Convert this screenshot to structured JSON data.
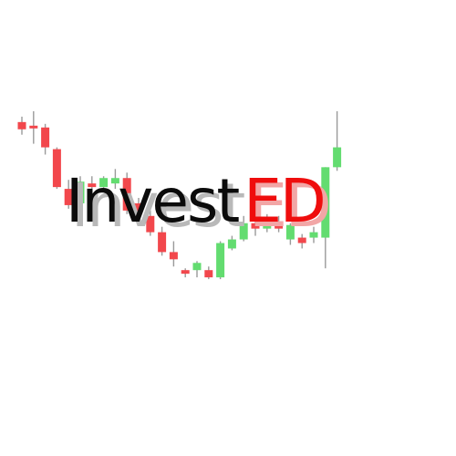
{
  "logo": {
    "word_black": "Invest",
    "word_red": "ED"
  },
  "colors": {
    "text_dark": "#0b0b0b",
    "text_red": "#ef0d0d",
    "candle_up": "#63dc70",
    "candle_down": "#f2474c",
    "wick": "#9a9a9a",
    "background": "#ffffff"
  },
  "candles": [
    {
      "dir": "down",
      "o": 0.92,
      "c": 0.88,
      "h": 0.95,
      "l": 0.85
    },
    {
      "dir": "down",
      "o": 0.9,
      "c": 0.89,
      "h": 0.98,
      "l": 0.8
    },
    {
      "dir": "down",
      "o": 0.89,
      "c": 0.78,
      "h": 0.91,
      "l": 0.74
    },
    {
      "dir": "down",
      "o": 0.77,
      "c": 0.56,
      "h": 0.78,
      "l": 0.55
    },
    {
      "dir": "down",
      "o": 0.55,
      "c": 0.46,
      "h": 0.6,
      "l": 0.44
    },
    {
      "dir": "up",
      "o": 0.47,
      "c": 0.59,
      "h": 0.62,
      "l": 0.45
    },
    {
      "dir": "down",
      "o": 0.58,
      "c": 0.56,
      "h": 0.62,
      "l": 0.5
    },
    {
      "dir": "up",
      "o": 0.56,
      "c": 0.61,
      "h": 0.62,
      "l": 0.53
    },
    {
      "dir": "up",
      "o": 0.58,
      "c": 0.61,
      "h": 0.66,
      "l": 0.55
    },
    {
      "dir": "down",
      "o": 0.61,
      "c": 0.43,
      "h": 0.64,
      "l": 0.41
    },
    {
      "dir": "down",
      "o": 0.47,
      "c": 0.42,
      "h": 0.5,
      "l": 0.39
    },
    {
      "dir": "down",
      "o": 0.4,
      "c": 0.31,
      "h": 0.43,
      "l": 0.29
    },
    {
      "dir": "down",
      "o": 0.31,
      "c": 0.2,
      "h": 0.34,
      "l": 0.18
    },
    {
      "dir": "down",
      "o": 0.2,
      "c": 0.16,
      "h": 0.26,
      "l": 0.12
    },
    {
      "dir": "down",
      "o": 0.1,
      "c": 0.08,
      "h": 0.11,
      "l": 0.06
    },
    {
      "dir": "up",
      "o": 0.1,
      "c": 0.14,
      "h": 0.15,
      "l": 0.06
    },
    {
      "dir": "down",
      "o": 0.1,
      "c": 0.06,
      "h": 0.12,
      "l": 0.05
    },
    {
      "dir": "up",
      "o": 0.06,
      "c": 0.25,
      "h": 0.26,
      "l": 0.05
    },
    {
      "dir": "up",
      "o": 0.22,
      "c": 0.27,
      "h": 0.29,
      "l": 0.21
    },
    {
      "dir": "up",
      "o": 0.27,
      "c": 0.36,
      "h": 0.4,
      "l": 0.26
    },
    {
      "dir": "down",
      "o": 0.36,
      "c": 0.33,
      "h": 0.4,
      "l": 0.29
    },
    {
      "dir": "up",
      "o": 0.33,
      "c": 0.35,
      "h": 0.41,
      "l": 0.31
    },
    {
      "dir": "down",
      "o": 0.35,
      "c": 0.33,
      "h": 0.4,
      "l": 0.31
    },
    {
      "dir": "up",
      "o": 0.27,
      "c": 0.35,
      "h": 0.36,
      "l": 0.24
    },
    {
      "dir": "down",
      "o": 0.28,
      "c": 0.25,
      "h": 0.3,
      "l": 0.22
    },
    {
      "dir": "up",
      "o": 0.28,
      "c": 0.31,
      "h": 0.34,
      "l": 0.25
    },
    {
      "dir": "up",
      "o": 0.28,
      "c": 0.67,
      "h": 0.67,
      "l": 0.11
    },
    {
      "dir": "up",
      "o": 0.67,
      "c": 0.78,
      "h": 0.98,
      "l": 0.65
    }
  ]
}
